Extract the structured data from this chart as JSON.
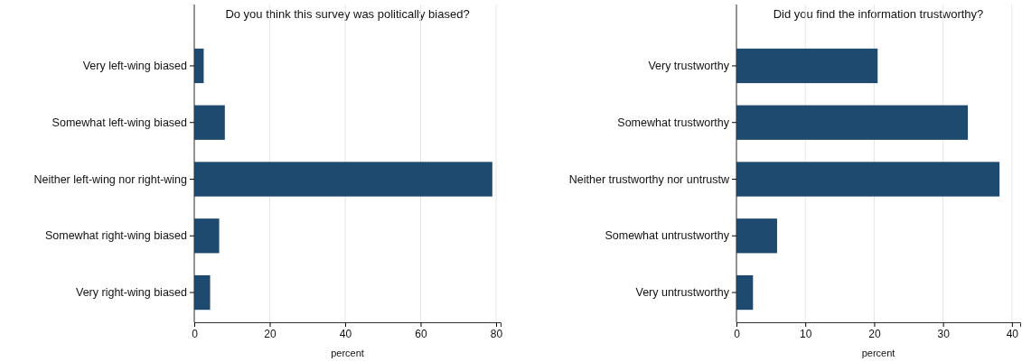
{
  "chart_data": [
    {
      "type": "bar",
      "orientation": "horizontal",
      "title": "Do you think this survey was politically biased?",
      "xlabel": "percent",
      "categories": [
        "Very left-wing biased",
        "Somewhat left-wing biased",
        "Neither left-wing nor right-wing",
        "Somewhat right-wing biased",
        "Very right-wing biased"
      ],
      "values": [
        2.5,
        8.1,
        79.0,
        6.6,
        4.2
      ],
      "color": "#1f4a6f",
      "xlim": [
        0,
        81.2
      ],
      "xticks": [
        0,
        20,
        40,
        60,
        80
      ],
      "grid": "x"
    },
    {
      "type": "bar",
      "orientation": "horizontal",
      "title": "Did you find the information trustworthy?",
      "xlabel": "percent",
      "categories": [
        "Very trustworthy",
        "Somewhat trustworthy",
        "Neither trustworthy nor untrustw",
        "Somewhat untrustworthy",
        "Very untrustworthy"
      ],
      "values": [
        20.5,
        33.6,
        38.2,
        5.9,
        2.4
      ],
      "color": "#1f4a6f",
      "xlim": [
        0,
        41.2
      ],
      "xticks": [
        0,
        10,
        20,
        30,
        40
      ],
      "grid": "x"
    }
  ]
}
